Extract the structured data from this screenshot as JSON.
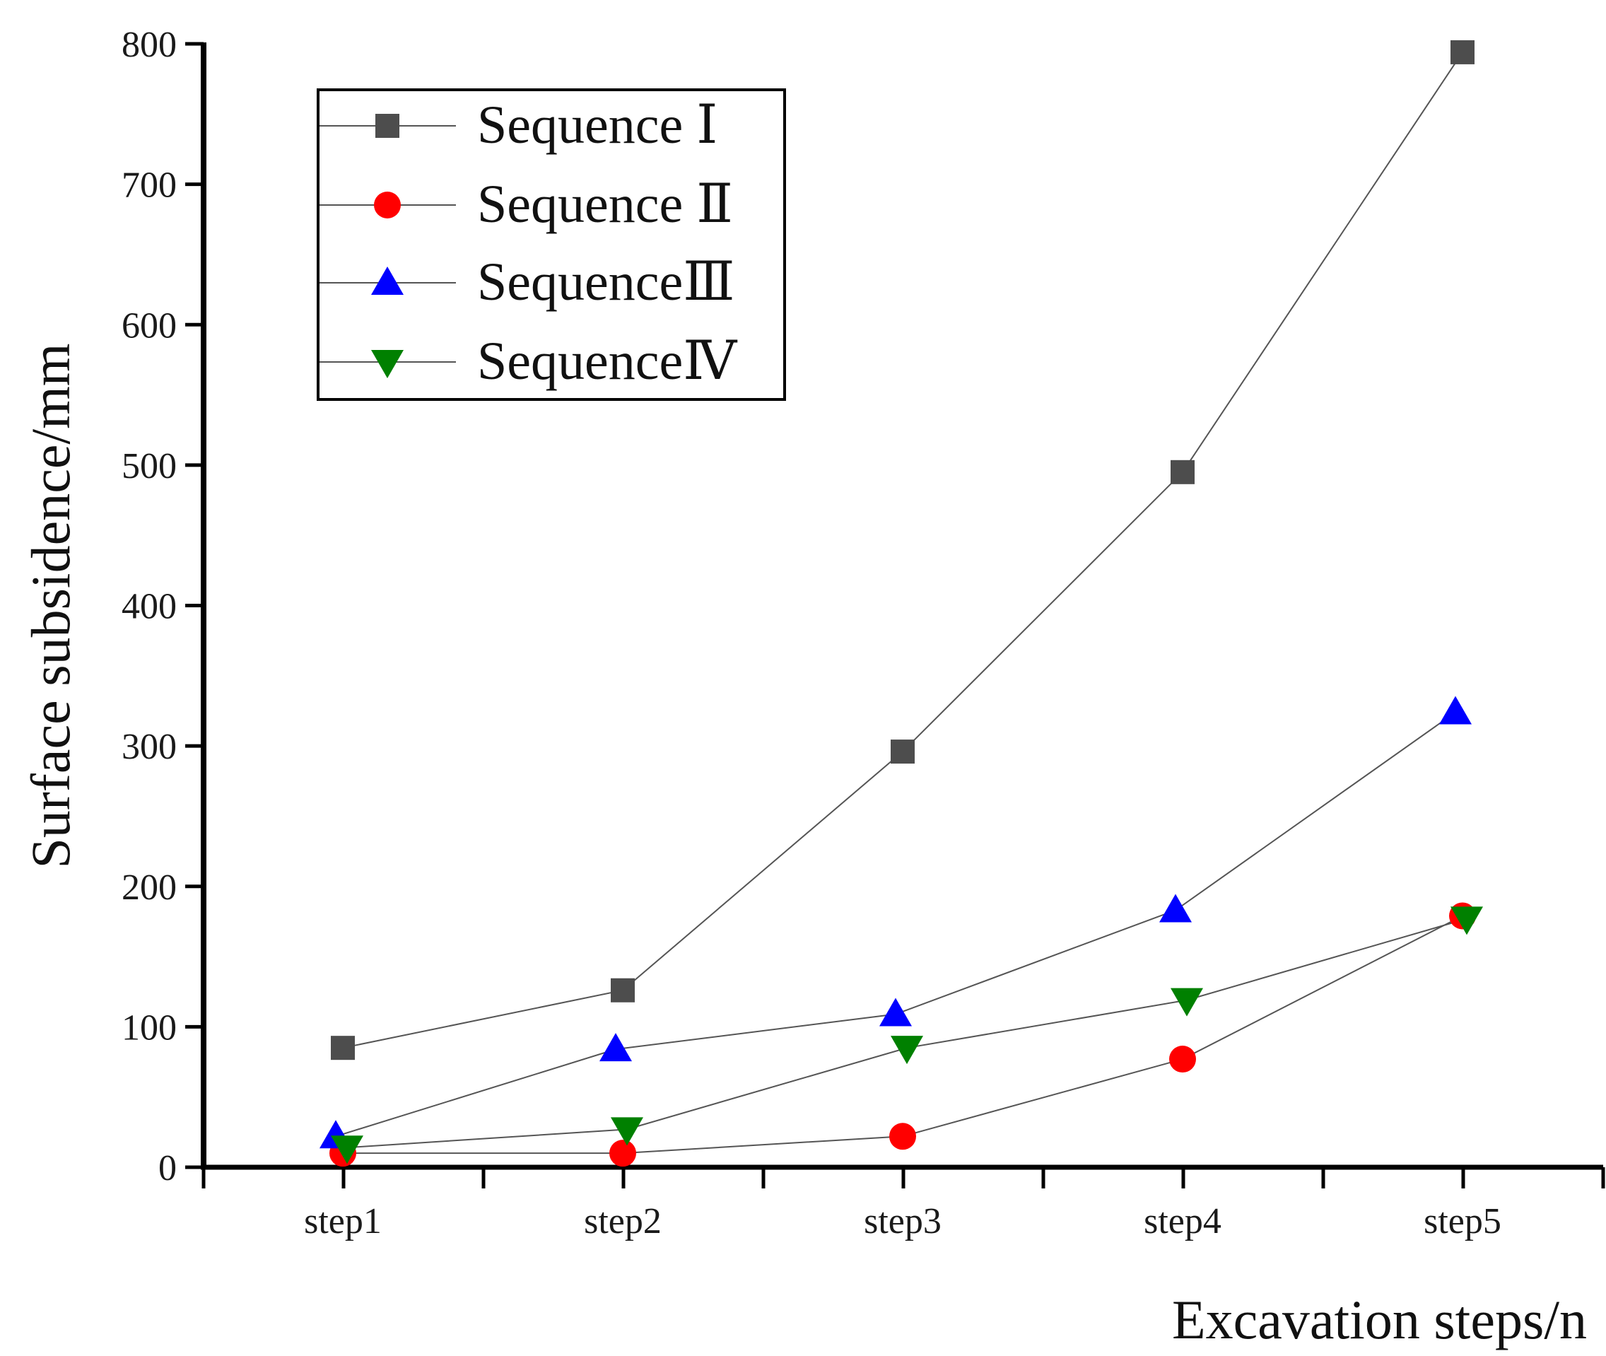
{
  "chart_data": {
    "type": "line",
    "title": "",
    "xlabel": "Excavation steps/n",
    "ylabel": "Surface subsidence/mm",
    "categories": [
      "step1",
      "step2",
      "step3",
      "step4",
      "step5"
    ],
    "ylim": [
      0,
      800
    ],
    "yticks": [
      "0",
      "100",
      "200",
      "300",
      "400",
      "500",
      "600",
      "700",
      "800"
    ],
    "grid": false,
    "legend_position": "top-left",
    "series": [
      {
        "name": "Sequence Ⅰ",
        "marker": "square",
        "color": "#4d4d4d",
        "values": [
          85,
          126,
          296,
          495,
          794
        ]
      },
      {
        "name": "Sequence Ⅱ",
        "marker": "circle",
        "color": "#ff0000",
        "values": [
          10,
          10,
          22,
          77,
          179
        ]
      },
      {
        "name": "SequenceⅢ",
        "marker": "triangle-up",
        "color": "#0000ff",
        "values": [
          22,
          84,
          109,
          183,
          324
        ]
      },
      {
        "name": "SequenceⅣ",
        "marker": "triangle-down",
        "color": "#008000",
        "values": [
          14,
          27,
          85,
          119,
          177
        ]
      }
    ]
  }
}
